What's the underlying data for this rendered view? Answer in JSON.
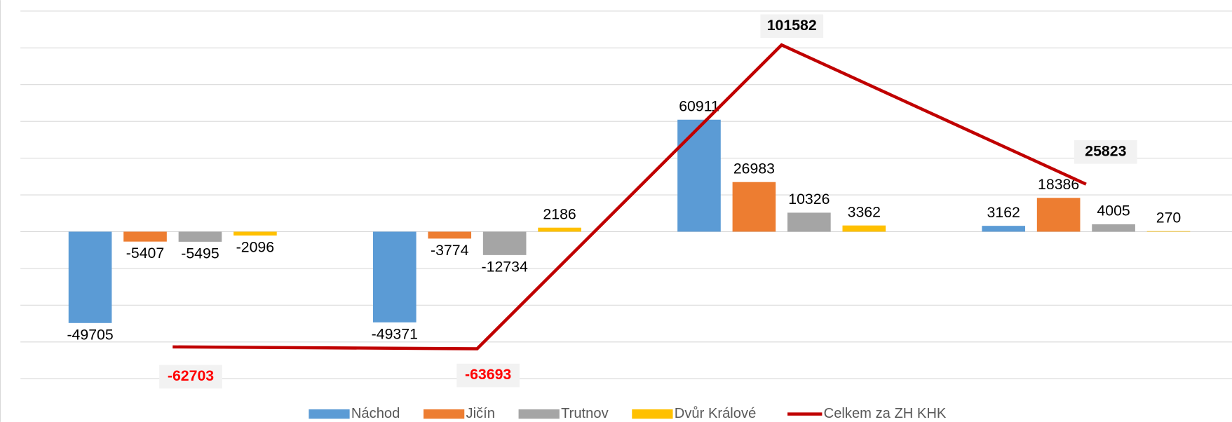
{
  "chart_data": {
    "type": "bar",
    "categories": [
      null,
      null,
      null,
      null
    ],
    "series": [
      {
        "name": "Náchod",
        "color": "#5b9bd5",
        "values": [
          -49705,
          -49371,
          60911,
          3162
        ]
      },
      {
        "name": "Jičín",
        "color": "#ed7d31",
        "values": [
          -5407,
          -3774,
          26983,
          18386
        ]
      },
      {
        "name": "Trutnov",
        "color": "#a5a5a5",
        "values": [
          -5495,
          -12734,
          10326,
          4005
        ]
      },
      {
        "name": "Dvůr Králové",
        "color": "#ffc000",
        "values": [
          -2096,
          2186,
          3362,
          270
        ]
      },
      {
        "name": "Celkem za ZH KHK",
        "color": "#c00000",
        "type": "line",
        "values": [
          -62703,
          -63693,
          101582,
          25823
        ]
      }
    ],
    "ylim": [
      -80000,
      120000
    ],
    "yticks": [
      -80000,
      -60000,
      -40000,
      -20000,
      0,
      20000,
      40000,
      60000,
      80000,
      100000,
      120000
    ],
    "grid": true,
    "legend": "bottom"
  }
}
